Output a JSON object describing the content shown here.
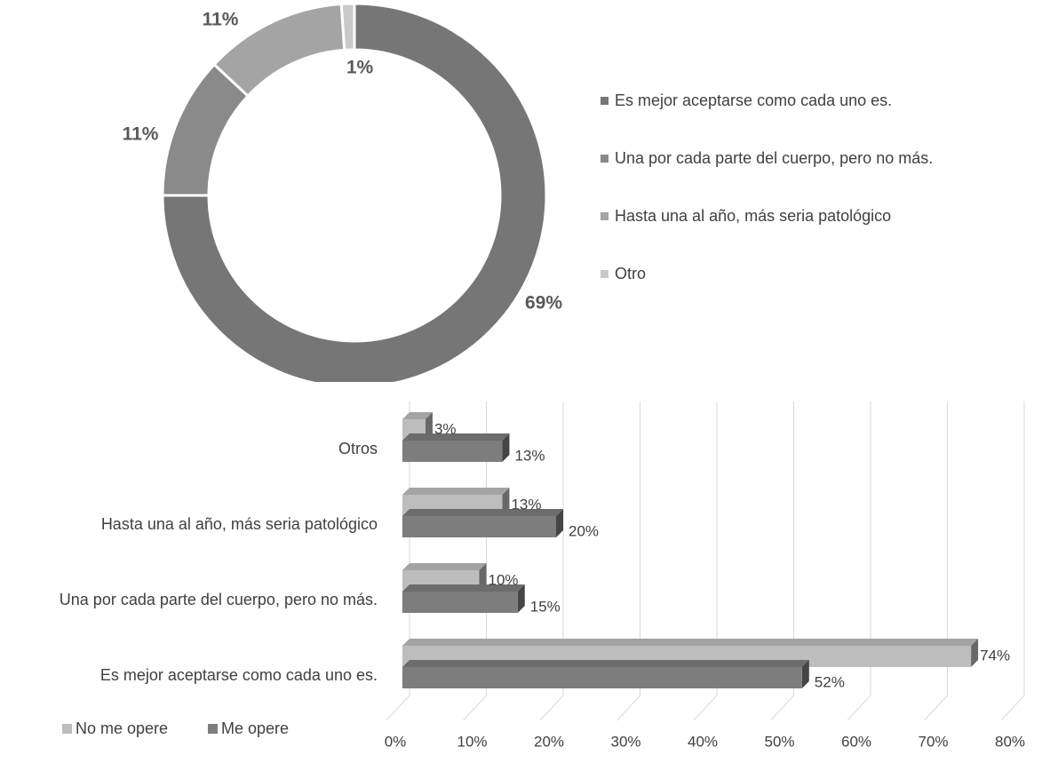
{
  "colors": {
    "mejor": "#767676",
    "una_por_cada": "#8a8a8a",
    "hasta": "#a4a4a4",
    "otro": "#c9c9c9",
    "no_me_opere": "#bdbdbd",
    "me_opere": "#7d7d7d",
    "grid": "#d9d9d9",
    "text": "#404040"
  },
  "chart_data": [
    {
      "type": "pie",
      "variant": "donut",
      "title": "",
      "slices": [
        {
          "label": "Es mejor aceptarse como cada uno es.",
          "value": 69,
          "data_label": "69%",
          "color_key": "mejor"
        },
        {
          "label": "Una por cada parte del cuerpo, pero no más.",
          "value": 11,
          "data_label": "11%",
          "color_key": "una_por_cada"
        },
        {
          "label": "Hasta una al año, más seria patológico",
          "value": 11,
          "data_label": "11%",
          "color_key": "hasta"
        },
        {
          "label": "Otro",
          "value": 1,
          "data_label": "1%",
          "color_key": "otro"
        }
      ],
      "legend_position": "right"
    },
    {
      "type": "bar",
      "orientation": "horizontal",
      "style": "3d",
      "title": "",
      "categories": [
        "Es mejor aceptarse como cada uno es.",
        "Una por cada parte del cuerpo, pero no más.",
        "Hasta una al año, más seria patológico",
        "Otros"
      ],
      "series": [
        {
          "name": "No me opere",
          "values": [
            74,
            10,
            13,
            3
          ],
          "labels": [
            "74%",
            "10%",
            "13%",
            "3%"
          ],
          "color_key": "no_me_opere"
        },
        {
          "name": "Me opere",
          "values": [
            52,
            15,
            20,
            13
          ],
          "labels": [
            "52%",
            "15%",
            "20%",
            "13%"
          ],
          "color_key": "me_opere"
        }
      ],
      "xlim": [
        0,
        80
      ],
      "ticks": [
        "0%",
        "10%",
        "20%",
        "30%",
        "40%",
        "50%",
        "60%",
        "70%",
        "80%"
      ],
      "grid": true,
      "legend_position": "bottom-left"
    }
  ]
}
